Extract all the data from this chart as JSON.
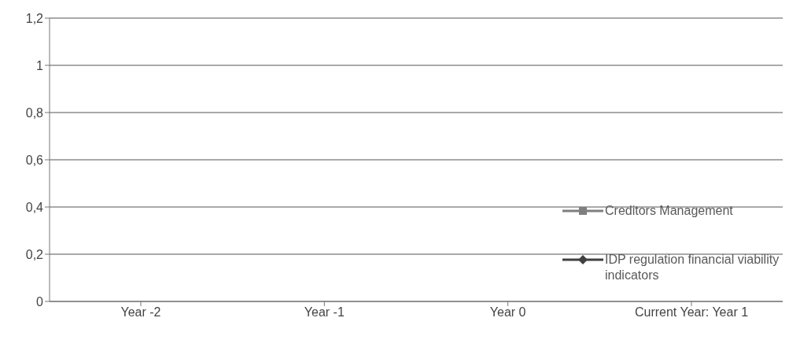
{
  "chart_data": {
    "type": "line",
    "categories": [
      "Year -2",
      "Year -1",
      "Year 0",
      "Current Year: Year 1"
    ],
    "series": [
      {
        "name": "Creditors Management",
        "color": "#7f7f7f",
        "marker": "square",
        "values": [
          null,
          null,
          null,
          null
        ]
      },
      {
        "name": "IDP regulation financial viability indicators",
        "color": "#404040",
        "marker": "diamond",
        "values": [
          null,
          null,
          null,
          null
        ]
      }
    ],
    "ylim": [
      0,
      1.2
    ],
    "yticks": [
      0,
      {
        "value": 0.2,
        "label": "0,2"
      },
      {
        "value": 0.4,
        "label": "0,4"
      },
      {
        "value": 0.6,
        "label": "0,6"
      },
      {
        "value": 0.8,
        "label": "0,8"
      },
      1,
      {
        "value": 1.2,
        "label": "1,2"
      }
    ],
    "grid": "y",
    "legend": "right"
  }
}
